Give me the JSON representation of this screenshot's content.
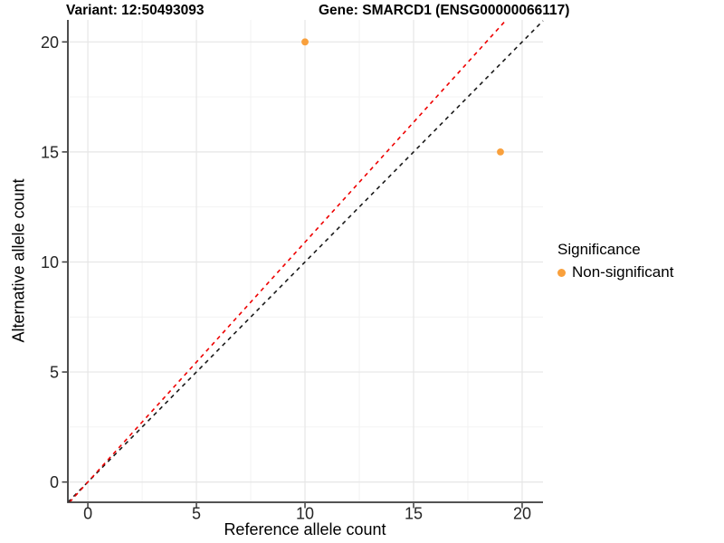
{
  "chart_data": {
    "type": "scatter",
    "titles": {
      "left": "Variant: 12:50493093",
      "right": "Gene: SMARCD1 (ENSG00000066117)"
    },
    "xlabel": "Reference allele count",
    "ylabel": "Alternative allele count",
    "xlim": [
      -0.92,
      20.96
    ],
    "ylim": [
      -0.92,
      21.0
    ],
    "x_ticks": [
      0,
      5,
      10,
      15,
      20
    ],
    "y_ticks": [
      0,
      5,
      10,
      15,
      20
    ],
    "x_minor_ticks": [
      2.5,
      7.5,
      12.5,
      17.5
    ],
    "y_minor_ticks": [
      2.5,
      7.5,
      12.5,
      17.5
    ],
    "grid": "major+minor",
    "legend_position": "right",
    "points": [
      {
        "x": 10,
        "y": 20,
        "significance": "Non-significant"
      },
      {
        "x": 19,
        "y": 15,
        "significance": "Non-significant"
      }
    ],
    "reference_lines": [
      {
        "name": "identity",
        "slope": 1.0,
        "intercept": 0,
        "color": "#1a1a1a",
        "linetype": "dashed"
      },
      {
        "name": "expected-ratio",
        "slope": 1.09,
        "intercept": 0,
        "color": "#ee0000",
        "linetype": "dashed"
      }
    ],
    "legend": {
      "title": "Significance",
      "items": [
        {
          "label": "Non-significant",
          "color": "#F9A03C"
        }
      ]
    },
    "colors": {
      "point": "#F9A03C",
      "grid_major": "#e6e6e6",
      "grid_minor": "#f1f1f1",
      "axis": "#3b3b3b",
      "tick_text": "#262626"
    }
  }
}
